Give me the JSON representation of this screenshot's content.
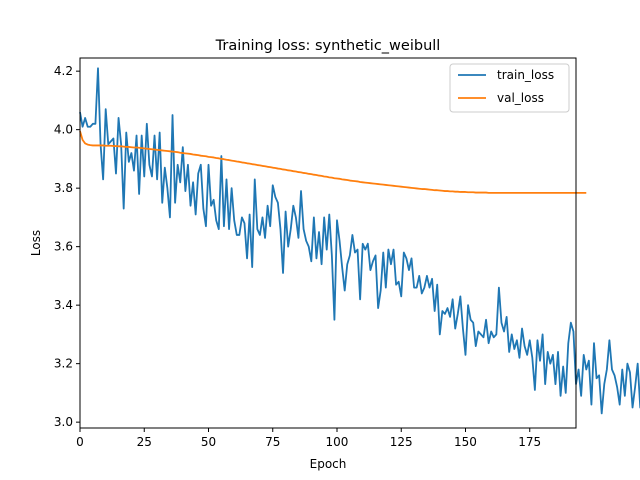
{
  "chart_data": {
    "type": "line",
    "title": "Training loss: synthetic_weibull",
    "xlabel": "Epoch",
    "ylabel": "Loss",
    "xlim": [
      0,
      193
    ],
    "ylim": [
      2.98,
      4.245
    ],
    "xticks": [
      0,
      25,
      50,
      75,
      100,
      125,
      150,
      175
    ],
    "yticks": [
      3.0,
      3.2,
      3.4,
      3.6,
      3.8,
      4.0,
      4.2
    ],
    "ytick_labels": [
      "3.0",
      "3.2",
      "3.4",
      "3.6",
      "3.8",
      "4.0",
      "4.2"
    ],
    "grid": false,
    "legend_position": "top-right",
    "series": [
      {
        "name": "train_loss",
        "color": "#1f77b4",
        "values": [
          4.06,
          4.01,
          4.04,
          4.01,
          4.01,
          4.02,
          4.02,
          4.21,
          3.95,
          3.83,
          4.07,
          3.95,
          3.96,
          3.97,
          3.85,
          4.04,
          3.95,
          3.73,
          3.99,
          3.89,
          3.92,
          3.86,
          3.98,
          3.78,
          3.98,
          3.84,
          4.02,
          3.88,
          3.84,
          3.98,
          3.83,
          3.99,
          3.75,
          3.87,
          3.8,
          3.7,
          4.05,
          3.75,
          3.88,
          3.82,
          3.94,
          3.79,
          3.88,
          3.74,
          3.82,
          3.71,
          3.85,
          3.88,
          3.73,
          3.67,
          3.88,
          3.74,
          3.76,
          3.69,
          3.66,
          3.91,
          3.67,
          3.83,
          3.66,
          3.8,
          3.69,
          3.64,
          3.64,
          3.7,
          3.68,
          3.56,
          3.71,
          3.53,
          3.83,
          3.66,
          3.64,
          3.7,
          3.63,
          3.74,
          3.67,
          3.81,
          3.77,
          3.75,
          3.66,
          3.51,
          3.72,
          3.6,
          3.66,
          3.74,
          3.7,
          3.63,
          3.79,
          3.66,
          3.62,
          3.6,
          3.55,
          3.7,
          3.56,
          3.65,
          3.54,
          3.7,
          3.59,
          3.71,
          3.57,
          3.35,
          3.69,
          3.62,
          3.53,
          3.45,
          3.54,
          3.57,
          3.64,
          3.58,
          3.59,
          3.42,
          3.61,
          3.59,
          3.61,
          3.52,
          3.55,
          3.57,
          3.39,
          3.45,
          3.58,
          3.46,
          3.59,
          3.54,
          3.59,
          3.47,
          3.48,
          3.43,
          3.58,
          3.56,
          3.52,
          3.56,
          3.46,
          3.46,
          3.5,
          3.44,
          3.46,
          3.5,
          3.46,
          3.49,
          3.38,
          3.47,
          3.3,
          3.38,
          3.37,
          3.39,
          3.36,
          3.42,
          3.32,
          3.37,
          3.43,
          3.32,
          3.23,
          3.4,
          3.35,
          3.34,
          3.26,
          3.31,
          3.3,
          3.29,
          3.35,
          3.27,
          3.31,
          3.29,
          3.3,
          3.46,
          3.34,
          3.31,
          3.36,
          3.24,
          3.3,
          3.25,
          3.28,
          3.22,
          3.32,
          3.26,
          3.23,
          3.28,
          3.22,
          3.11,
          3.28,
          3.21,
          3.3,
          3.13,
          3.24,
          3.2,
          3.23,
          3.13,
          3.24,
          3.09,
          3.19,
          3.1,
          3.27,
          3.34,
          3.31,
          3.13,
          3.18,
          3.09,
          3.23,
          3.18,
          3.21,
          3.06,
          3.27,
          3.15,
          3.16,
          3.03,
          3.13,
          3.18,
          3.28,
          3.18,
          3.16,
          3.12,
          3.06,
          3.18,
          3.09,
          3.2,
          3.17,
          3.05,
          3.12,
          3.2,
          3.05,
          3.11,
          3.1,
          3.12,
          3.03,
          3.06,
          3.08,
          3.02
        ]
      },
      {
        "name": "val_loss",
        "color": "#ff7f0e",
        "values": [
          3.995,
          3.965,
          3.953,
          3.949,
          3.947,
          3.946,
          3.946,
          3.946,
          3.946,
          3.946,
          3.945,
          3.945,
          3.945,
          3.944,
          3.944,
          3.943,
          3.943,
          3.942,
          3.941,
          3.941,
          3.94,
          3.939,
          3.939,
          3.938,
          3.937,
          3.936,
          3.935,
          3.934,
          3.933,
          3.932,
          3.931,
          3.93,
          3.929,
          3.928,
          3.927,
          3.926,
          3.925,
          3.924,
          3.923,
          3.921,
          3.92,
          3.919,
          3.918,
          3.917,
          3.915,
          3.914,
          3.913,
          3.911,
          3.91,
          3.909,
          3.907,
          3.906,
          3.905,
          3.903,
          3.902,
          3.9,
          3.899,
          3.897,
          3.896,
          3.894,
          3.893,
          3.891,
          3.89,
          3.888,
          3.887,
          3.885,
          3.884,
          3.882,
          3.881,
          3.879,
          3.878,
          3.876,
          3.875,
          3.873,
          3.872,
          3.87,
          3.869,
          3.867,
          3.866,
          3.864,
          3.863,
          3.861,
          3.86,
          3.858,
          3.857,
          3.855,
          3.854,
          3.852,
          3.851,
          3.849,
          3.848,
          3.846,
          3.845,
          3.843,
          3.842,
          3.84,
          3.839,
          3.837,
          3.836,
          3.834,
          3.833,
          3.832,
          3.83,
          3.829,
          3.828,
          3.826,
          3.825,
          3.824,
          3.823,
          3.821,
          3.82,
          3.819,
          3.818,
          3.817,
          3.816,
          3.815,
          3.814,
          3.813,
          3.812,
          3.811,
          3.81,
          3.809,
          3.808,
          3.807,
          3.806,
          3.805,
          3.804,
          3.803,
          3.802,
          3.801,
          3.8,
          3.799,
          3.798,
          3.797,
          3.797,
          3.796,
          3.795,
          3.794,
          3.793,
          3.793,
          3.792,
          3.791,
          3.79,
          3.79,
          3.789,
          3.789,
          3.788,
          3.788,
          3.787,
          3.787,
          3.787,
          3.786,
          3.786,
          3.786,
          3.785,
          3.785,
          3.785,
          3.785,
          3.785,
          3.784,
          3.784,
          3.784,
          3.784,
          3.784,
          3.784,
          3.784,
          3.784,
          3.784,
          3.784,
          3.784,
          3.784,
          3.784,
          3.784,
          3.784,
          3.784,
          3.784,
          3.784,
          3.784,
          3.784,
          3.784,
          3.784,
          3.784,
          3.784,
          3.784,
          3.784,
          3.784,
          3.784,
          3.784,
          3.784,
          3.784,
          3.784,
          3.784,
          3.784,
          3.784,
          3.784,
          3.784,
          3.784,
          3.784
        ]
      }
    ]
  }
}
